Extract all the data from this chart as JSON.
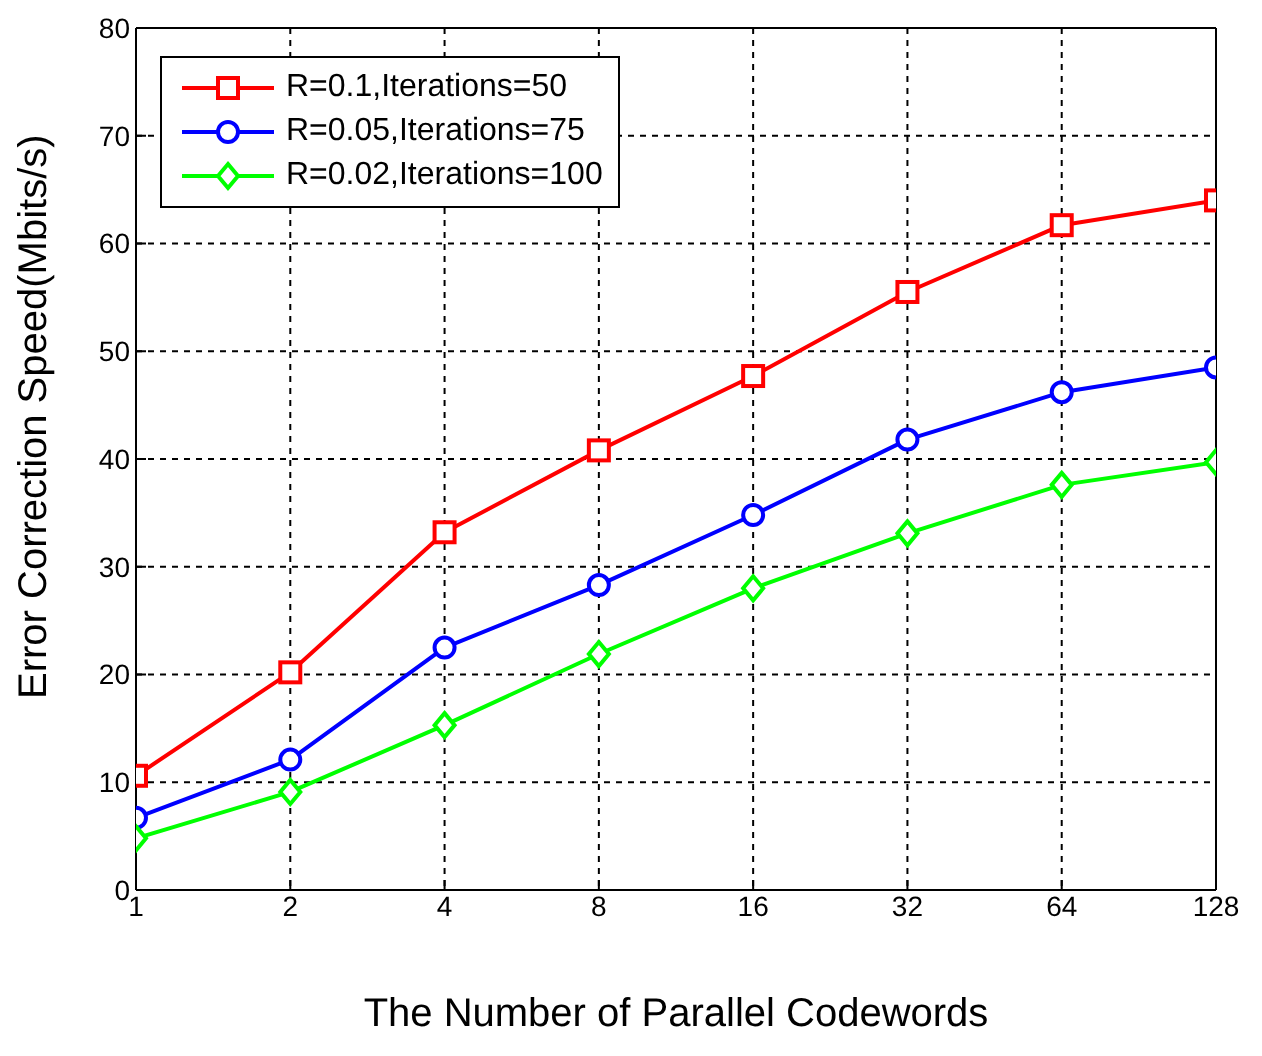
{
  "chart_data": {
    "type": "line",
    "xlabel": "The Number of Parallel Codewords",
    "ylabel": "Error Correction Speed(Mbits/s)",
    "categories": [
      "1",
      "2",
      "4",
      "8",
      "16",
      "32",
      "64",
      "128"
    ],
    "series": [
      {
        "name": "R=0.1,Iterations=50",
        "color": "#ff0000",
        "marker": "square",
        "values": [
          10.6,
          20.2,
          33.2,
          40.8,
          47.7,
          55.5,
          61.7,
          64.0
        ]
      },
      {
        "name": "R=0.05,Iterations=75",
        "color": "#0000ff",
        "marker": "circle",
        "values": [
          6.7,
          12.1,
          22.5,
          28.3,
          34.8,
          41.8,
          46.2,
          48.5
        ]
      },
      {
        "name": "R=0.02,Iterations=100",
        "color": "#00ff00",
        "marker": "diamond",
        "values": [
          4.8,
          9.1,
          15.3,
          21.9,
          28.0,
          33.1,
          37.6,
          39.7
        ]
      }
    ],
    "ylim": [
      0,
      80
    ],
    "yticks": [
      0,
      10,
      20,
      30,
      40,
      50,
      60,
      70,
      80
    ],
    "grid": true,
    "legend": "top left",
    "line_style": "solid"
  }
}
